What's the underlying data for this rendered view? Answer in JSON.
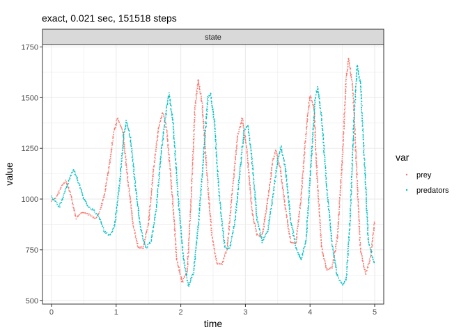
{
  "chart_data": {
    "type": "scatter",
    "title": "exact, 0.021 sec, 151518 steps",
    "facet_label": "state",
    "xlabel": "time",
    "ylabel": "value",
    "xlim": [
      -0.14,
      5.14
    ],
    "ylim": [
      482,
      1762
    ],
    "x_ticks": [
      0,
      1,
      2,
      3,
      4,
      5
    ],
    "y_ticks": [
      500,
      750,
      1000,
      1250,
      1500,
      1750
    ],
    "grid": true,
    "legend": {
      "title": "var",
      "position": "right"
    },
    "series": [
      {
        "name": "prey",
        "color": "#F8766D",
        "points": [
          [
            0.0,
            990
          ],
          [
            0.08,
            1010
          ],
          [
            0.15,
            1060
          ],
          [
            0.22,
            1090
          ],
          [
            0.3,
            1020
          ],
          [
            0.38,
            905
          ],
          [
            0.45,
            925
          ],
          [
            0.52,
            935
          ],
          [
            0.6,
            920
          ],
          [
            0.68,
            905
          ],
          [
            0.75,
            945
          ],
          [
            0.82,
            1020
          ],
          [
            0.9,
            1180
          ],
          [
            0.96,
            1320
          ],
          [
            1.02,
            1400
          ],
          [
            1.1,
            1340
          ],
          [
            1.18,
            1100
          ],
          [
            1.26,
            880
          ],
          [
            1.34,
            760
          ],
          [
            1.42,
            760
          ],
          [
            1.5,
            880
          ],
          [
            1.58,
            1150
          ],
          [
            1.66,
            1360
          ],
          [
            1.72,
            1425
          ],
          [
            1.78,
            1350
          ],
          [
            1.86,
            1050
          ],
          [
            1.94,
            700
          ],
          [
            2.02,
            590
          ],
          [
            2.1,
            640
          ],
          [
            2.16,
            1000
          ],
          [
            2.22,
            1450
          ],
          [
            2.27,
            1590
          ],
          [
            2.33,
            1470
          ],
          [
            2.4,
            1150
          ],
          [
            2.48,
            820
          ],
          [
            2.56,
            680
          ],
          [
            2.64,
            680
          ],
          [
            2.72,
            760
          ],
          [
            2.8,
            1050
          ],
          [
            2.88,
            1310
          ],
          [
            2.95,
            1400
          ],
          [
            3.02,
            1250
          ],
          [
            3.1,
            950
          ],
          [
            3.18,
            820
          ],
          [
            3.26,
            820
          ],
          [
            3.34,
            980
          ],
          [
            3.42,
            1180
          ],
          [
            3.47,
            1240
          ],
          [
            3.54,
            1150
          ],
          [
            3.62,
            950
          ],
          [
            3.7,
            790
          ],
          [
            3.78,
            780
          ],
          [
            3.86,
            1000
          ],
          [
            3.94,
            1340
          ],
          [
            4.0,
            1510
          ],
          [
            4.06,
            1450
          ],
          [
            4.12,
            1050
          ],
          [
            4.18,
            760
          ],
          [
            4.26,
            650
          ],
          [
            4.34,
            660
          ],
          [
            4.42,
            800
          ],
          [
            4.5,
            1200
          ],
          [
            4.56,
            1600
          ],
          [
            4.6,
            1695
          ],
          [
            4.66,
            1560
          ],
          [
            4.72,
            1150
          ],
          [
            4.78,
            750
          ],
          [
            4.86,
            630
          ],
          [
            4.94,
            720
          ],
          [
            5.0,
            890
          ]
        ]
      },
      {
        "name": "predators",
        "color": "#00BFC4",
        "points": [
          [
            0.0,
            1010
          ],
          [
            0.06,
            990
          ],
          [
            0.12,
            960
          ],
          [
            0.2,
            1030
          ],
          [
            0.28,
            1100
          ],
          [
            0.34,
            1145
          ],
          [
            0.42,
            1080
          ],
          [
            0.5,
            1000
          ],
          [
            0.58,
            960
          ],
          [
            0.66,
            940
          ],
          [
            0.74,
            910
          ],
          [
            0.82,
            840
          ],
          [
            0.9,
            820
          ],
          [
            0.98,
            870
          ],
          [
            1.06,
            1100
          ],
          [
            1.12,
            1320
          ],
          [
            1.16,
            1385
          ],
          [
            1.22,
            1300
          ],
          [
            1.3,
            1060
          ],
          [
            1.38,
            850
          ],
          [
            1.46,
            760
          ],
          [
            1.54,
            790
          ],
          [
            1.62,
            950
          ],
          [
            1.7,
            1240
          ],
          [
            1.78,
            1450
          ],
          [
            1.82,
            1520
          ],
          [
            1.88,
            1380
          ],
          [
            1.96,
            1000
          ],
          [
            2.04,
            710
          ],
          [
            2.12,
            570
          ],
          [
            2.2,
            640
          ],
          [
            2.28,
            900
          ],
          [
            2.36,
            1250
          ],
          [
            2.42,
            1500
          ],
          [
            2.46,
            1520
          ],
          [
            2.52,
            1380
          ],
          [
            2.6,
            1000
          ],
          [
            2.68,
            760
          ],
          [
            2.76,
            760
          ],
          [
            2.84,
            900
          ],
          [
            2.92,
            1150
          ],
          [
            2.98,
            1340
          ],
          [
            3.04,
            1360
          ],
          [
            3.1,
            1200
          ],
          [
            3.18,
            900
          ],
          [
            3.26,
            790
          ],
          [
            3.34,
            840
          ],
          [
            3.42,
            1000
          ],
          [
            3.5,
            1200
          ],
          [
            3.55,
            1260
          ],
          [
            3.62,
            1150
          ],
          [
            3.7,
            900
          ],
          [
            3.78,
            760
          ],
          [
            3.86,
            700
          ],
          [
            3.94,
            800
          ],
          [
            4.02,
            1200
          ],
          [
            4.08,
            1500
          ],
          [
            4.12,
            1550
          ],
          [
            4.18,
            1400
          ],
          [
            4.26,
            1050
          ],
          [
            4.34,
            780
          ],
          [
            4.42,
            620
          ],
          [
            4.5,
            580
          ],
          [
            4.56,
            600
          ],
          [
            4.62,
            900
          ],
          [
            4.68,
            1400
          ],
          [
            4.73,
            1660
          ],
          [
            4.78,
            1570
          ],
          [
            4.84,
            1200
          ],
          [
            4.9,
            800
          ],
          [
            4.96,
            720
          ],
          [
            5.0,
            680
          ]
        ]
      }
    ]
  }
}
